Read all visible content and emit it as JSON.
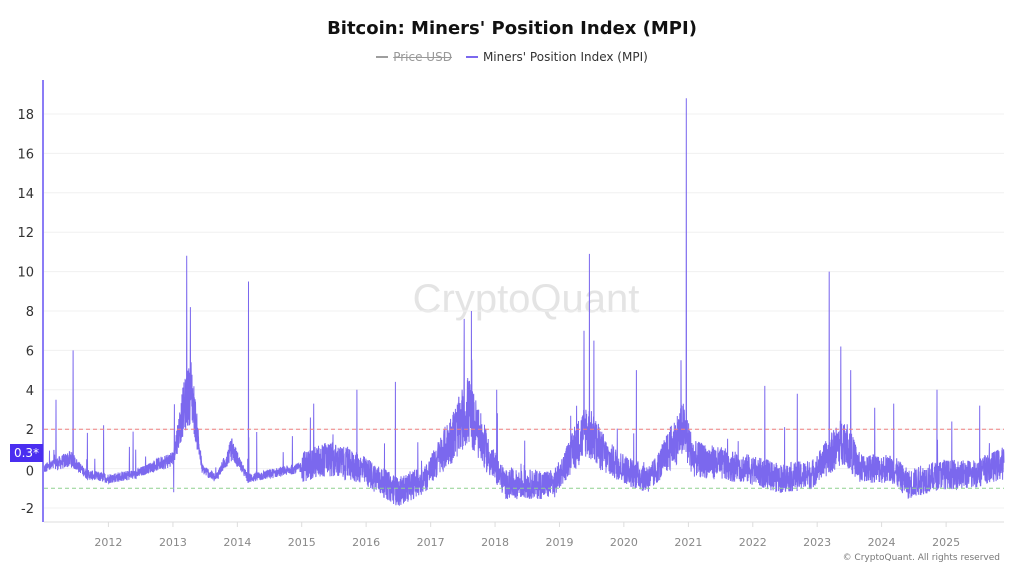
{
  "chart_data": {
    "type": "line",
    "title": "Bitcoin: Miners' Position Index (MPI)",
    "legend": [
      {
        "name": "Price USD",
        "color": "#9e9e9e",
        "hidden": true
      },
      {
        "name": "Miners' Position Index (MPI)",
        "color": "#7b68ee",
        "hidden": false
      }
    ],
    "legend_placement": "top-center",
    "ylim": [
      -3,
      20
    ],
    "y_ticks": [
      -2,
      0,
      2,
      4,
      6,
      8,
      10,
      12,
      14,
      16,
      18
    ],
    "x_ticks": [
      "2012",
      "2013",
      "2014",
      "2015",
      "2016",
      "2017",
      "2018",
      "2019",
      "2020",
      "2021",
      "2022",
      "2023",
      "2024",
      "2025"
    ],
    "xlim": [
      "2011-01-01",
      "2025-11-25"
    ],
    "grid": true,
    "reference_lines": [
      {
        "value": 2,
        "color": "#f08080",
        "style": "dashed"
      },
      {
        "value": -1,
        "color": "#8fd18f",
        "style": "dashed"
      }
    ],
    "current_value_label": "0.3*",
    "series": [
      {
        "name": "Miners' Position Index (MPI)",
        "baseline": [
          [
            "2011-01-01",
            0
          ],
          [
            "2011-06-01",
            0.5
          ],
          [
            "2011-09-01",
            -0.3
          ],
          [
            "2012-01-01",
            -0.5
          ],
          [
            "2012-06-01",
            -0.3
          ],
          [
            "2012-10-01",
            0.2
          ],
          [
            "2013-01-01",
            0.5
          ],
          [
            "2013-03-01",
            3
          ],
          [
            "2013-04-15",
            4
          ],
          [
            "2013-06-15",
            0
          ],
          [
            "2013-09-01",
            -0.5
          ],
          [
            "2013-12-01",
            1
          ],
          [
            "2014-03-01",
            -0.5
          ],
          [
            "2014-12-01",
            0
          ],
          [
            "2015-06-01",
            0.5
          ],
          [
            "2015-12-01",
            0
          ],
          [
            "2016-03-01",
            -0.5
          ],
          [
            "2016-07-01",
            -1.2
          ],
          [
            "2016-12-01",
            -0.5
          ],
          [
            "2017-06-01",
            2
          ],
          [
            "2017-08-01",
            3
          ],
          [
            "2017-12-01",
            0.5
          ],
          [
            "2018-03-01",
            -0.8
          ],
          [
            "2018-12-01",
            -0.8
          ],
          [
            "2019-06-01",
            2
          ],
          [
            "2019-10-01",
            0.5
          ],
          [
            "2020-03-01",
            -0.3
          ],
          [
            "2020-06-01",
            -0.5
          ],
          [
            "2020-12-01",
            2
          ],
          [
            "2021-02-01",
            0.5
          ],
          [
            "2021-06-01",
            0.3
          ],
          [
            "2021-12-01",
            0
          ],
          [
            "2022-06-01",
            -0.5
          ],
          [
            "2022-12-01",
            -0.3
          ],
          [
            "2023-06-01",
            1.5
          ],
          [
            "2023-09-01",
            0
          ],
          [
            "2024-03-01",
            0
          ],
          [
            "2024-06-01",
            -0.8
          ],
          [
            "2024-12-01",
            -0.3
          ],
          [
            "2025-06-01",
            -0.3
          ],
          [
            "2025-11-25",
            0.3
          ]
        ],
        "spikes": [
          [
            "2011-03-10",
            3.5
          ],
          [
            "2011-06-15",
            6
          ],
          [
            "2011-12-05",
            2.2
          ],
          [
            "2013-01-05",
            -1.2
          ],
          [
            "2013-03-20",
            10.8
          ],
          [
            "2013-04-10",
            8.2
          ],
          [
            "2014-03-05",
            9.5
          ],
          [
            "2015-03-10",
            3.3
          ],
          [
            "2015-11-10",
            4
          ],
          [
            "2016-06-15",
            4.4
          ],
          [
            "2017-07-10",
            7.6
          ],
          [
            "2017-08-20",
            8
          ],
          [
            "2018-01-10",
            4
          ],
          [
            "2019-05-20",
            7
          ],
          [
            "2019-06-20",
            10.9
          ],
          [
            "2019-07-15",
            6.5
          ],
          [
            "2020-03-12",
            5
          ],
          [
            "2020-11-20",
            5.5
          ],
          [
            "2020-12-20",
            18.8
          ],
          [
            "2022-03-10",
            4.2
          ],
          [
            "2022-09-10",
            3.8
          ],
          [
            "2023-03-10",
            10
          ],
          [
            "2023-05-15",
            6.2
          ],
          [
            "2023-07-10",
            5
          ],
          [
            "2024-03-10",
            3.3
          ],
          [
            "2024-11-10",
            4
          ],
          [
            "2025-07-10",
            3.2
          ]
        ]
      }
    ]
  },
  "watermark": "CryptoQuant",
  "copyright": "© CryptoQuant. All rights reserved"
}
